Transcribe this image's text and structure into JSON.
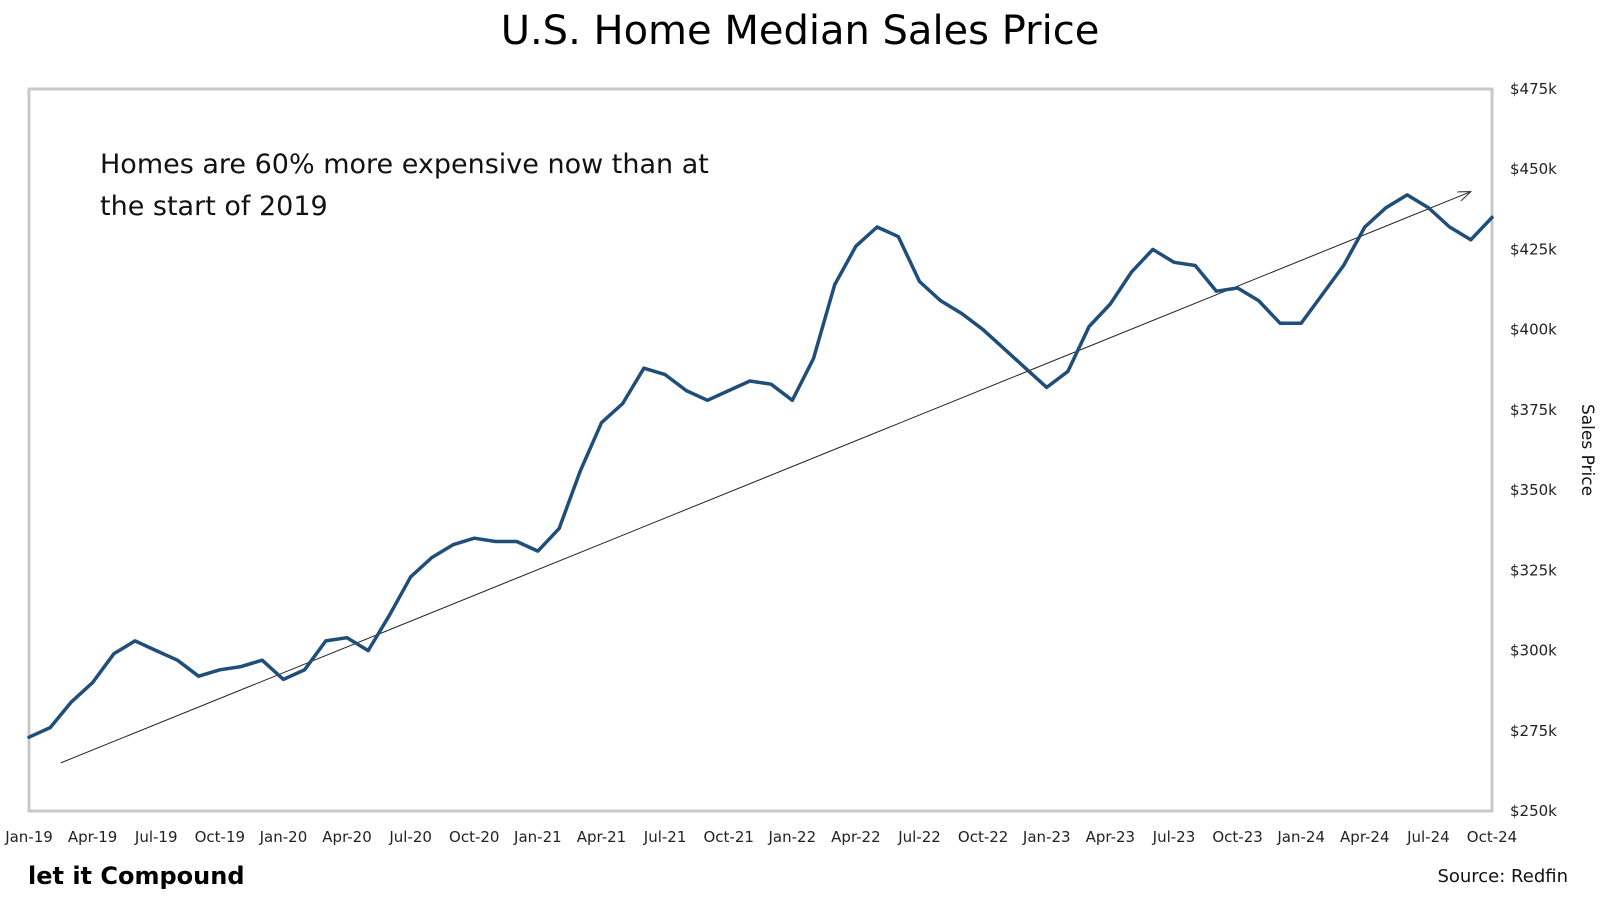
{
  "chart_data": {
    "type": "line",
    "title": "U.S. Home Median Sales Price",
    "ylabel": "Sales Price",
    "xlabel": "",
    "annotation_lines": [
      "Homes are 60% more expensive now than at",
      "the start of 2019"
    ],
    "ylim": [
      250000,
      475000
    ],
    "y_ticks": [
      {
        "value": 250000,
        "label": "$250k"
      },
      {
        "value": 275000,
        "label": "$275k"
      },
      {
        "value": 300000,
        "label": "$300k"
      },
      {
        "value": 325000,
        "label": "$325k"
      },
      {
        "value": 350000,
        "label": "$350k"
      },
      {
        "value": 375000,
        "label": "$375k"
      },
      {
        "value": 400000,
        "label": "$400k"
      },
      {
        "value": 425000,
        "label": "$425k"
      },
      {
        "value": 450000,
        "label": "$450k"
      },
      {
        "value": 475000,
        "label": "$475k"
      }
    ],
    "x_ticks": [
      {
        "index": 0,
        "label": "Jan-19"
      },
      {
        "index": 3,
        "label": "Apr-19"
      },
      {
        "index": 6,
        "label": "Jul-19"
      },
      {
        "index": 9,
        "label": "Oct-19"
      },
      {
        "index": 12,
        "label": "Jan-20"
      },
      {
        "index": 15,
        "label": "Apr-20"
      },
      {
        "index": 18,
        "label": "Jul-20"
      },
      {
        "index": 21,
        "label": "Oct-20"
      },
      {
        "index": 24,
        "label": "Jan-21"
      },
      {
        "index": 27,
        "label": "Apr-21"
      },
      {
        "index": 30,
        "label": "Jul-21"
      },
      {
        "index": 33,
        "label": "Oct-21"
      },
      {
        "index": 36,
        "label": "Jan-22"
      },
      {
        "index": 39,
        "label": "Apr-22"
      },
      {
        "index": 42,
        "label": "Jul-22"
      },
      {
        "index": 45,
        "label": "Oct-22"
      },
      {
        "index": 48,
        "label": "Jan-23"
      },
      {
        "index": 51,
        "label": "Apr-23"
      },
      {
        "index": 54,
        "label": "Jul-23"
      },
      {
        "index": 57,
        "label": "Oct-23"
      },
      {
        "index": 60,
        "label": "Jan-24"
      },
      {
        "index": 63,
        "label": "Apr-24"
      },
      {
        "index": 66,
        "label": "Jul-24"
      },
      {
        "index": 69,
        "label": "Oct-24"
      }
    ],
    "x_range": [
      0,
      69
    ],
    "series": [
      {
        "name": "U.S. Home Median Sales Price",
        "color": "#1f4e79",
        "values": [
          273000,
          276000,
          284000,
          290000,
          299000,
          303000,
          300000,
          297000,
          292000,
          294000,
          295000,
          297000,
          291000,
          294000,
          303000,
          304000,
          300000,
          311000,
          323000,
          329000,
          333000,
          335000,
          334000,
          334000,
          331000,
          338000,
          356000,
          371000,
          377000,
          388000,
          386000,
          381000,
          378000,
          381000,
          384000,
          383000,
          378000,
          391000,
          414000,
          426000,
          432000,
          429000,
          415000,
          409000,
          405000,
          400000,
          394000,
          388000,
          382000,
          387000,
          401000,
          408000,
          418000,
          425000,
          421000,
          420000,
          412000,
          413000,
          409000,
          402000,
          402000,
          411000,
          420000,
          432000,
          438000,
          442000,
          438000,
          432000,
          428000,
          435000
        ]
      }
    ],
    "trendline": {
      "color": "#222222",
      "start": {
        "x": 1.5,
        "y": 265000
      },
      "end": {
        "x": 68,
        "y": 443000
      },
      "arrow": true
    }
  },
  "footer": {
    "brand": "let it Compound",
    "source": "Source: Redfin"
  }
}
